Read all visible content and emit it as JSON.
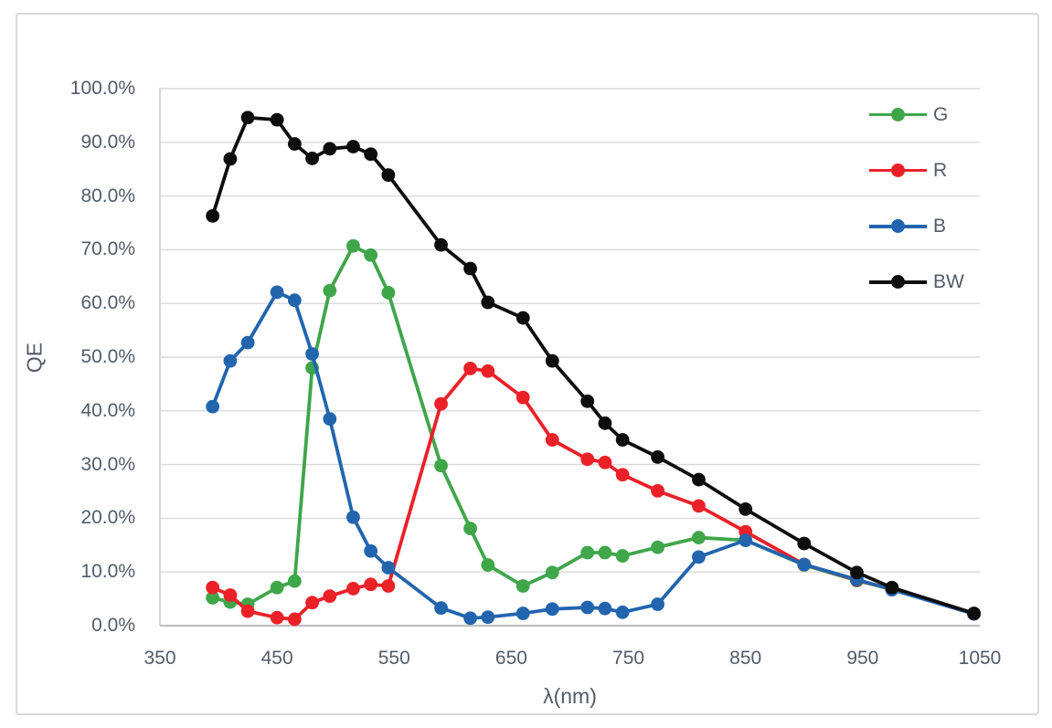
{
  "figure": {
    "background": "#FFFFFF",
    "border_color": "#D9D9D9",
    "grid_color": "#D9D9D9",
    "axis_color": "#BFBFBF",
    "label_color": "#525C68"
  },
  "chart_data": {
    "type": "line",
    "xlabel": "λ(nm)",
    "ylabel": "QE",
    "x": [
      395,
      410,
      425,
      450,
      465,
      480,
      495,
      515,
      530,
      545,
      590,
      615,
      630,
      660,
      685,
      715,
      730,
      745,
      775,
      810,
      850,
      900,
      945,
      975,
      1045
    ],
    "series": [
      {
        "name": "G",
        "color": "#3FA64A",
        "values": [
          5.2,
          4.4,
          4.0,
          7.1,
          8.3,
          48.0,
          62.4,
          70.7,
          69.0,
          62.0,
          29.8,
          18.1,
          11.3,
          7.4,
          9.9,
          13.6,
          13.6,
          13.0,
          14.6,
          16.4,
          15.9,
          11.3,
          8.4,
          6.8,
          2.2
        ]
      },
      {
        "name": "R",
        "color": "#EB2128",
        "values": [
          7.1,
          5.7,
          2.7,
          1.5,
          1.2,
          4.3,
          5.5,
          6.9,
          7.7,
          7.4,
          41.3,
          47.9,
          47.4,
          42.5,
          34.6,
          31.0,
          30.4,
          28.1,
          25.1,
          22.3,
          17.5,
          11.4,
          8.5,
          6.8,
          2.2
        ]
      },
      {
        "name": "B",
        "color": "#2265AE",
        "values": [
          40.8,
          49.3,
          52.7,
          62.1,
          60.6,
          50.6,
          38.5,
          20.2,
          13.9,
          10.8,
          3.3,
          1.4,
          1.6,
          2.3,
          3.1,
          3.4,
          3.2,
          2.5,
          4.0,
          12.8,
          15.9,
          11.4,
          8.6,
          6.7,
          2.2
        ]
      },
      {
        "name": "BW",
        "color": "#0D0D0D",
        "values": [
          76.3,
          86.9,
          94.6,
          94.2,
          89.7,
          87.0,
          88.8,
          89.2,
          87.8,
          83.9,
          70.9,
          66.5,
          60.2,
          57.3,
          49.3,
          41.8,
          37.7,
          34.6,
          31.4,
          27.2,
          21.7,
          15.3,
          9.9,
          7.1,
          2.3
        ]
      }
    ],
    "xlim": [
      350,
      1050
    ],
    "ylim": [
      0,
      100
    ],
    "x_ticks": [
      "350",
      "450",
      "550",
      "650",
      "750",
      "850",
      "950",
      "1050"
    ],
    "y_ticks": [
      "100.0%",
      "90.0%",
      "80.0%",
      "70.0%",
      "60.0%",
      "50.0%",
      "40.0%",
      "30.0%",
      "20.0%",
      "10.0%",
      "0.0%"
    ],
    "grid": "horizontal",
    "legend_position": "top-right"
  }
}
